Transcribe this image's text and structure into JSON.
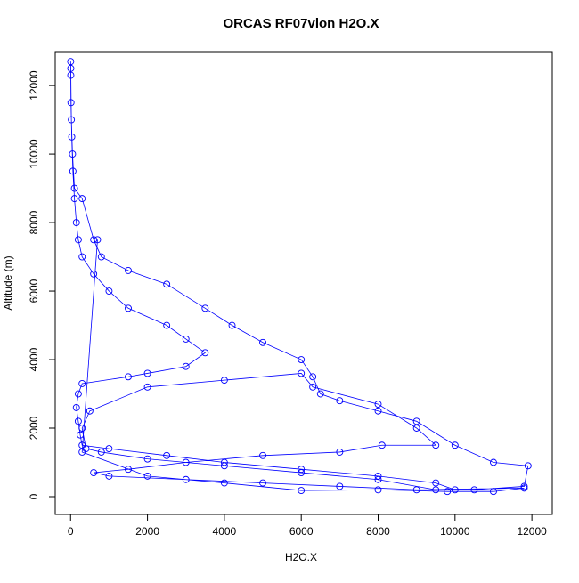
{
  "chart_data": {
    "type": "line",
    "markers": "circle",
    "title": "ORCAS RF07vlon H2O.X",
    "x_label": "H2O.X",
    "y_label": "Altitude (m)",
    "color": "#0000ff",
    "x": [
      10000,
      9500,
      8000,
      6000,
      4000,
      2500,
      1000,
      300,
      250,
      200,
      150,
      200,
      300,
      1500,
      2000,
      3000,
      3500,
      3000,
      2500,
      1500,
      1000,
      600,
      300,
      200,
      150,
      100,
      60,
      30,
      10,
      5,
      2,
      5,
      20,
      50,
      100,
      300,
      600,
      800,
      1500,
      2500,
      3500,
      4200,
      5000,
      6000,
      6300,
      6500,
      7000,
      8000,
      9000,
      10000,
      11000,
      11900,
      11800,
      10500,
      9500,
      8000,
      6000,
      4000,
      2000,
      800,
      400,
      300,
      500,
      2000,
      4000,
      6000,
      6300,
      8000,
      9000,
      9500,
      8100,
      7000,
      5000,
      3000,
      1500,
      600,
      1000,
      3000,
      5000,
      7000,
      9000,
      11800,
      11000,
      9800,
      8000,
      6000,
      4000,
      2000,
      300,
      700
    ],
    "values": [
      200,
      400,
      600,
      800,
      1000,
      1200,
      1400,
      1500,
      1800,
      2200,
      2600,
      3000,
      3300,
      3500,
      3600,
      3800,
      4200,
      4600,
      5000,
      5500,
      6000,
      6500,
      7000,
      7500,
      8000,
      8700,
      9500,
      10500,
      11500,
      12300,
      12700,
      12500,
      11000,
      10000,
      9000,
      8700,
      7500,
      7000,
      6600,
      6200,
      5500,
      5000,
      4500,
      4000,
      3500,
      3000,
      2800,
      2500,
      2200,
      1500,
      1000,
      900,
      300,
      200,
      200,
      500,
      700,
      900,
      1100,
      1300,
      1400,
      2000,
      2500,
      3200,
      3400,
      3600,
      3200,
      2700,
      2000,
      1500,
      1500,
      1300,
      1200,
      1000,
      800,
      700,
      600,
      500,
      400,
      300,
      200,
      250,
      150,
      150,
      200,
      180,
      400,
      600,
      1300,
      7500
    ],
    "xlim": [
      -400,
      12530
    ],
    "ylim": [
      -520,
      12990
    ],
    "xticks": [
      0,
      2000,
      4000,
      6000,
      8000,
      10000,
      12000
    ],
    "yticks": [
      0,
      2000,
      4000,
      6000,
      8000,
      10000,
      12000
    ]
  }
}
